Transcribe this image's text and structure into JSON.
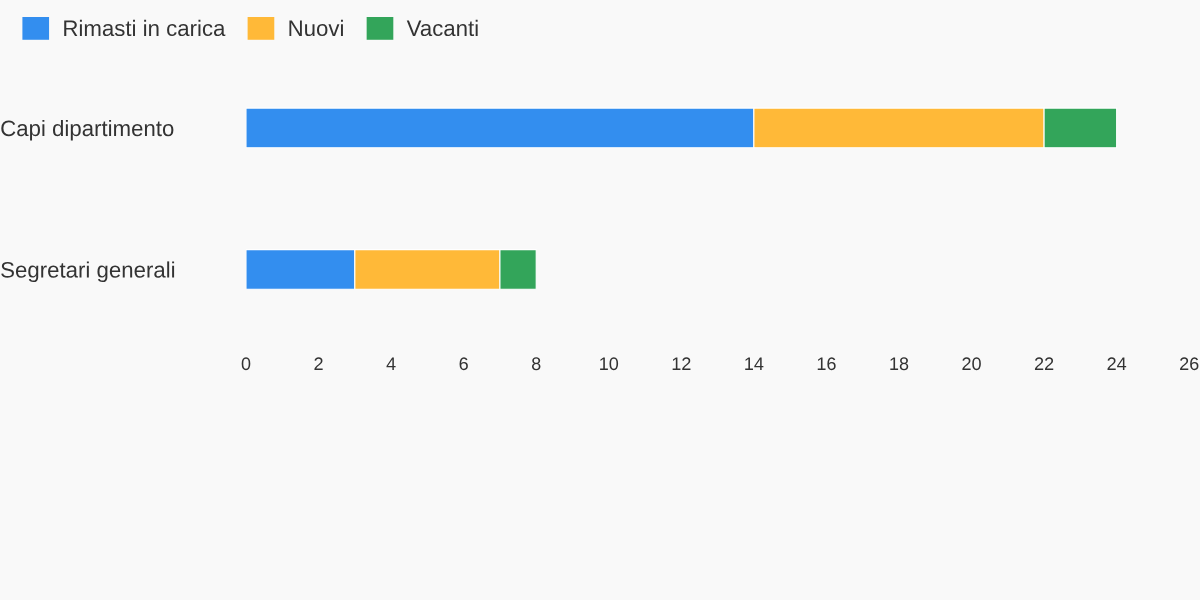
{
  "chart_data": {
    "type": "bar",
    "orientation": "horizontal",
    "stacked": true,
    "categories": [
      "Capi dipartimento",
      "Segretari generali"
    ],
    "series": [
      {
        "name": "Rimasti in carica",
        "color": "#338eef",
        "values": [
          14,
          3
        ]
      },
      {
        "name": "Nuovi",
        "color": "#ffb938",
        "values": [
          8,
          4
        ]
      },
      {
        "name": "Vacanti",
        "color": "#33a55a",
        "values": [
          2,
          1
        ]
      }
    ],
    "xlim": [
      0,
      26
    ],
    "xticks": [
      0,
      2,
      4,
      6,
      8,
      10,
      12,
      14,
      16,
      18,
      20,
      22,
      24,
      26
    ],
    "grid": false,
    "legend": "top left"
  }
}
